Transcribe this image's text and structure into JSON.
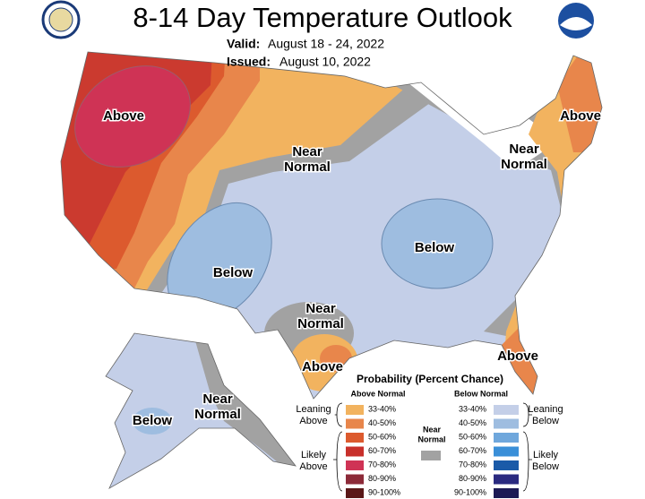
{
  "header": {
    "title": "8-14 Day Temperature Outlook",
    "valid_label": "Valid:",
    "valid": "August 18 - 24, 2022",
    "issued_label": "Issued:",
    "issued": "August 10, 2022"
  },
  "map_labels": [
    {
      "lines": [
        "Above"
      ]
    },
    {
      "lines": [
        "Near",
        "Normal"
      ]
    },
    {
      "lines": [
        "Below"
      ]
    },
    {
      "lines": [
        "Below"
      ]
    },
    {
      "lines": [
        "Near",
        "Normal"
      ]
    },
    {
      "lines": [
        "Above"
      ]
    },
    {
      "lines": [
        "Above"
      ]
    },
    {
      "lines": [
        "Near",
        "Normal"
      ]
    },
    {
      "lines": [
        "Above"
      ]
    },
    {
      "lines": [
        "Below"
      ]
    },
    {
      "lines": [
        "Near",
        "Normal"
      ]
    }
  ],
  "legend": {
    "title": "Probability (Percent Chance)",
    "above": {
      "header": "Above Normal",
      "bins": [
        "33-40%",
        "40-50%",
        "50-60%",
        "60-70%",
        "70-80%",
        "80-90%",
        "90-100%"
      ],
      "groups": [
        {
          "lines": [
            "Leaning",
            "Above"
          ]
        },
        {
          "lines": [
            "Likely",
            "Above"
          ]
        }
      ]
    },
    "below": {
      "header": "Below Normal",
      "bins": [
        "33-40%",
        "40-50%",
        "50-60%",
        "60-70%",
        "70-80%",
        "80-90%",
        "90-100%"
      ],
      "groups": [
        {
          "lines": [
            "Leaning",
            "Below"
          ]
        },
        {
          "lines": [
            "Likely",
            "Below"
          ]
        }
      ]
    },
    "near_normal": {
      "lines": [
        "Near",
        "Normal"
      ]
    }
  }
}
